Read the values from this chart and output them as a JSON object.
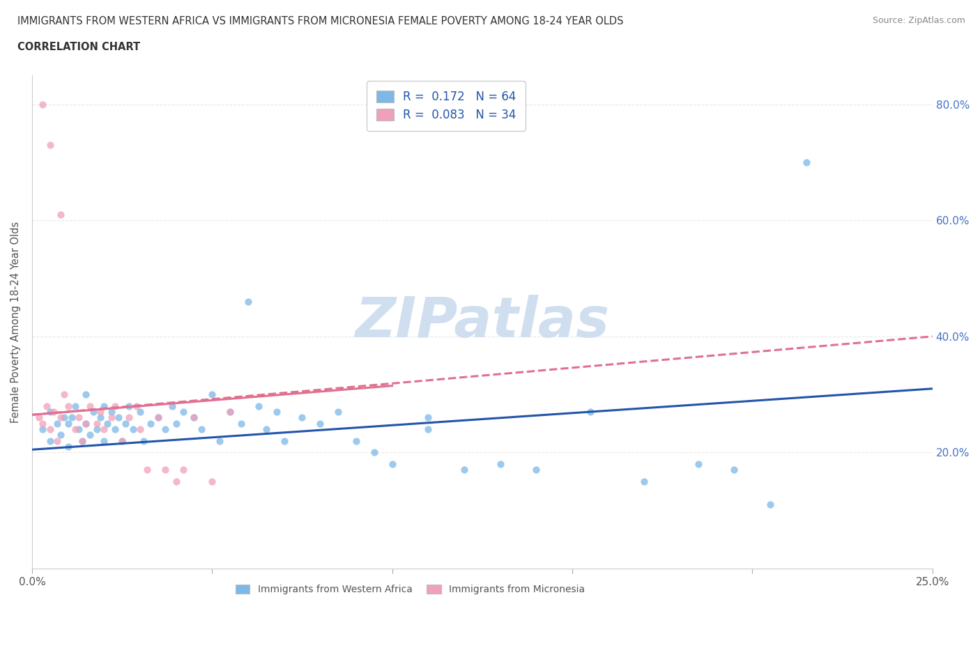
{
  "title_line1": "IMMIGRANTS FROM WESTERN AFRICA VS IMMIGRANTS FROM MICRONESIA FEMALE POVERTY AMONG 18-24 YEAR OLDS",
  "title_line2": "CORRELATION CHART",
  "source_text": "Source: ZipAtlas.com",
  "ylabel": "Female Poverty Among 18-24 Year Olds",
  "xlim": [
    0.0,
    0.25
  ],
  "ylim": [
    0.0,
    0.85
  ],
  "series1_color": "#7db8e8",
  "series2_color": "#f0a0b8",
  "trendline1_color": "#2255aa",
  "trendline2_color": "#e07090",
  "watermark_color": "#d0dff0",
  "watermark_text": "ZIPatlas",
  "background_color": "#ffffff",
  "grid_color": "#e8e8e8",
  "series1_label": "Immigrants from Western Africa",
  "series2_label": "Immigrants from Micronesia",
  "legend1_text": "R =  0.172   N = 64",
  "legend2_text": "R =  0.083   N = 34",
  "legend_text_color": "#2255aa",
  "right_tick_color": "#4472c4",
  "series1_x": [
    0.003,
    0.005,
    0.005,
    0.007,
    0.008,
    0.009,
    0.01,
    0.01,
    0.011,
    0.012,
    0.013,
    0.014,
    0.015,
    0.015,
    0.016,
    0.017,
    0.018,
    0.019,
    0.02,
    0.02,
    0.021,
    0.022,
    0.023,
    0.024,
    0.025,
    0.026,
    0.027,
    0.028,
    0.03,
    0.031,
    0.033,
    0.035,
    0.037,
    0.039,
    0.04,
    0.042,
    0.045,
    0.047,
    0.05,
    0.052,
    0.055,
    0.058,
    0.06,
    0.063,
    0.065,
    0.068,
    0.07,
    0.075,
    0.08,
    0.085,
    0.09,
    0.095,
    0.1,
    0.11,
    0.12,
    0.13,
    0.14,
    0.155,
    0.17,
    0.185,
    0.195,
    0.205,
    0.215,
    0.11
  ],
  "series1_y": [
    0.24,
    0.22,
    0.27,
    0.25,
    0.23,
    0.26,
    0.25,
    0.21,
    0.26,
    0.28,
    0.24,
    0.22,
    0.25,
    0.3,
    0.23,
    0.27,
    0.24,
    0.26,
    0.28,
    0.22,
    0.25,
    0.27,
    0.24,
    0.26,
    0.22,
    0.25,
    0.28,
    0.24,
    0.27,
    0.22,
    0.25,
    0.26,
    0.24,
    0.28,
    0.25,
    0.27,
    0.26,
    0.24,
    0.3,
    0.22,
    0.27,
    0.25,
    0.46,
    0.28,
    0.24,
    0.27,
    0.22,
    0.26,
    0.25,
    0.27,
    0.22,
    0.2,
    0.18,
    0.26,
    0.17,
    0.18,
    0.17,
    0.27,
    0.15,
    0.18,
    0.17,
    0.11,
    0.7,
    0.24
  ],
  "series2_x": [
    0.002,
    0.003,
    0.004,
    0.005,
    0.006,
    0.007,
    0.008,
    0.009,
    0.01,
    0.012,
    0.013,
    0.014,
    0.015,
    0.016,
    0.018,
    0.019,
    0.02,
    0.022,
    0.023,
    0.025,
    0.027,
    0.029,
    0.03,
    0.032,
    0.035,
    0.037,
    0.04,
    0.042,
    0.045,
    0.05,
    0.055,
    0.003,
    0.005,
    0.008
  ],
  "series2_y": [
    0.26,
    0.25,
    0.28,
    0.24,
    0.27,
    0.22,
    0.26,
    0.3,
    0.28,
    0.24,
    0.26,
    0.22,
    0.25,
    0.28,
    0.25,
    0.27,
    0.24,
    0.26,
    0.28,
    0.22,
    0.26,
    0.28,
    0.24,
    0.17,
    0.26,
    0.17,
    0.15,
    0.17,
    0.26,
    0.15,
    0.27,
    0.8,
    0.73,
    0.61
  ],
  "trendline1_x0": 0.0,
  "trendline1_y0": 0.205,
  "trendline1_x1": 0.25,
  "trendline1_y1": 0.31,
  "trendline2_solid_x0": 0.0,
  "trendline2_solid_y0": 0.265,
  "trendline2_solid_x1": 0.1,
  "trendline2_solid_y1": 0.315,
  "trendline2_dash_x0": 0.0,
  "trendline2_dash_y0": 0.265,
  "trendline2_dash_x1": 0.25,
  "trendline2_dash_y1": 0.4
}
